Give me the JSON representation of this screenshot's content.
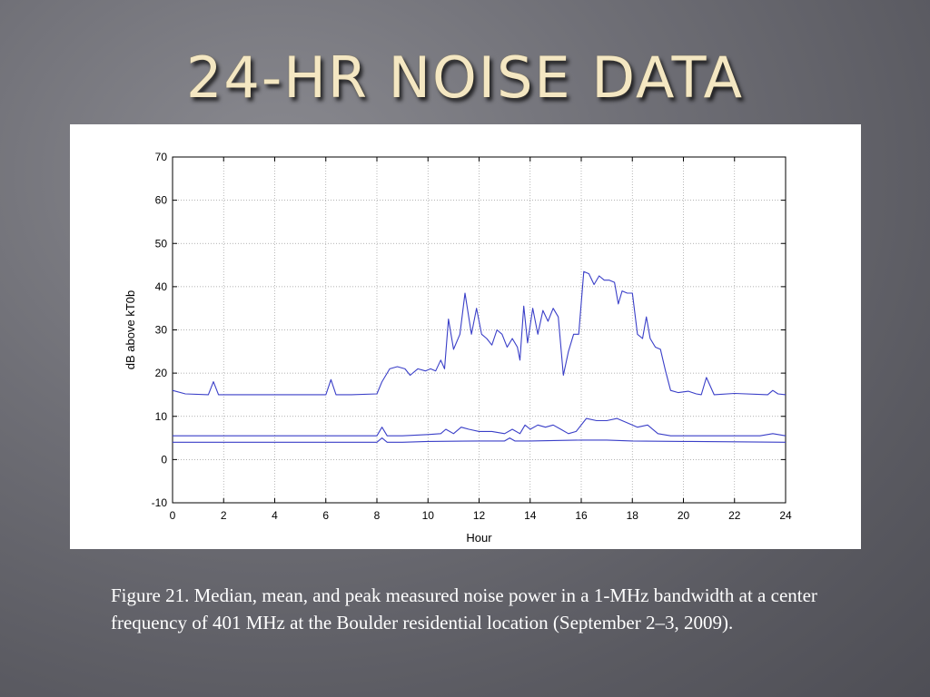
{
  "slide": {
    "title": "24-HR NOISE DATA",
    "caption": "Figure 21. Median, mean, and peak measured noise power in a 1-MHz bandwidth at a center frequency of 401 MHz at the Boulder residential location (September 2–3, 2009)."
  },
  "colors": {
    "line": "#3a3fc8",
    "grid": "#9a9a9a",
    "axis": "#000000"
  },
  "chart_data": {
    "type": "line",
    "title": "",
    "xlabel": "Hour",
    "ylabel": "dB above kT0b",
    "xlim": [
      0,
      24
    ],
    "ylim": [
      -10,
      70
    ],
    "xticks": [
      0,
      2,
      4,
      6,
      8,
      10,
      12,
      14,
      16,
      18,
      20,
      22,
      24
    ],
    "yticks": [
      -10,
      0,
      10,
      20,
      30,
      40,
      50,
      60,
      70
    ],
    "grid": true,
    "legend": "none",
    "series": [
      {
        "x": [
          0,
          0.5,
          1.4,
          1.6,
          1.8,
          2.5,
          4,
          5.5,
          6.0,
          6.2,
          6.4,
          7,
          8,
          8.2,
          8.5,
          8.8,
          9.1,
          9.3,
          9.6,
          9.9,
          10.1,
          10.3,
          10.5,
          10.65,
          10.8,
          11.0,
          11.25,
          11.45,
          11.7,
          11.9,
          12.1,
          12.3,
          12.5,
          12.7,
          12.9,
          13.1,
          13.3,
          13.5,
          13.6,
          13.75,
          13.9,
          14.1,
          14.3,
          14.5,
          14.7,
          14.9,
          15.1,
          15.3,
          15.5,
          15.7,
          15.9,
          16.1,
          16.3,
          16.5,
          16.7,
          16.9,
          17.1,
          17.3,
          17.45,
          17.6,
          17.8,
          18.0,
          18.2,
          18.4,
          18.55,
          18.7,
          18.9,
          19.1,
          19.3,
          19.5,
          19.8,
          20.2,
          20.5,
          20.7,
          20.9,
          21.2,
          22,
          23.3,
          23.5,
          23.7,
          24
        ],
        "y": [
          16,
          15.2,
          15,
          18,
          15,
          15,
          15,
          15,
          15,
          18.5,
          15,
          15,
          15.2,
          18,
          21,
          21.5,
          21,
          19.5,
          21,
          20.5,
          21,
          20.5,
          23,
          21,
          32.5,
          25.5,
          29,
          38.5,
          29,
          35,
          29,
          28,
          26.5,
          30,
          29,
          26,
          28,
          26,
          23,
          35.5,
          27,
          35,
          29,
          34.5,
          32,
          35,
          33,
          19.5,
          25,
          29,
          29,
          43.5,
          43,
          40.5,
          42.5,
          41.5,
          41.5,
          41,
          36,
          39,
          38.5,
          38.5,
          29,
          28,
          33,
          28,
          26,
          25.5,
          20.5,
          16,
          15.5,
          15.8,
          15.2,
          15,
          19,
          15,
          15.3,
          15,
          16,
          15.2,
          15
        ]
      },
      {
        "x": [
          0,
          4,
          8,
          8.2,
          8.4,
          9,
          10,
          10.5,
          10.7,
          11,
          11.3,
          11.6,
          12,
          12.5,
          13,
          13.3,
          13.6,
          13.8,
          14,
          14.3,
          14.6,
          14.9,
          15.2,
          15.5,
          15.8,
          16.2,
          16.6,
          17,
          17.4,
          17.8,
          18.2,
          18.6,
          19,
          19.5,
          20,
          21,
          22,
          23,
          23.5,
          24
        ],
        "y": [
          5.5,
          5.5,
          5.5,
          7.5,
          5.5,
          5.5,
          5.8,
          6,
          7,
          6,
          7.5,
          7,
          6.5,
          6.5,
          6,
          7,
          6,
          8,
          7,
          8,
          7.5,
          8,
          7,
          6,
          6.5,
          9.5,
          9,
          9,
          9.5,
          8.5,
          7.5,
          8,
          6,
          5.5,
          5.5,
          5.5,
          5.5,
          5.5,
          6,
          5.5
        ]
      },
      {
        "x": [
          0,
          4,
          8,
          8.2,
          8.4,
          9,
          10,
          12,
          13,
          13.2,
          13.4,
          14,
          16,
          17,
          18,
          20,
          22,
          24
        ],
        "y": [
          4,
          4,
          4,
          5,
          4,
          4,
          4.2,
          4.3,
          4.3,
          5,
          4.3,
          4.3,
          4.5,
          4.5,
          4.3,
          4.2,
          4.1,
          4
        ]
      }
    ]
  }
}
